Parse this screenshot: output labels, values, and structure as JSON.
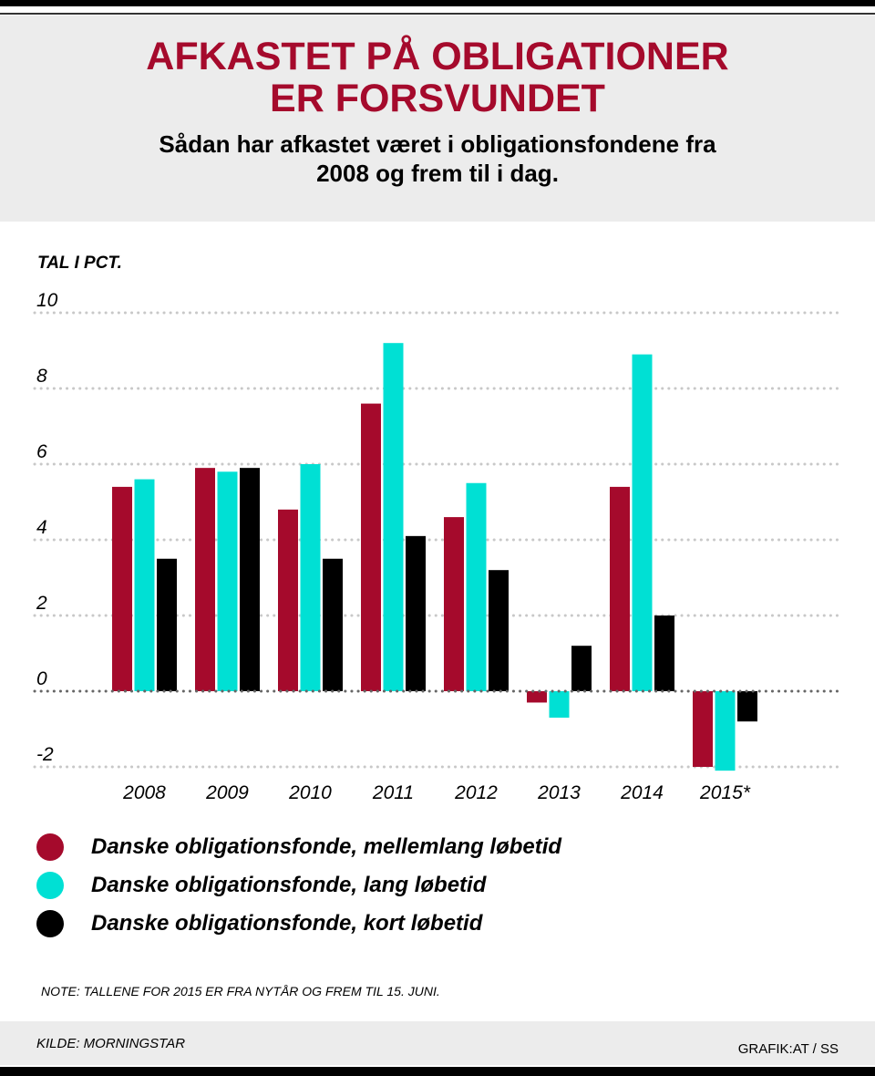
{
  "header": {
    "title_line1": "AFKASTET PÅ OBLIGATIONER",
    "title_line2": "ER FORSVUNDET",
    "subtitle_line1": "Sådan har afkastet været i obligationsfondene fra",
    "subtitle_line2": "2008 og frem til i dag."
  },
  "colors": {
    "mellemlang": "#a50a2c",
    "lang": "#00e0d4",
    "kort": "#000000",
    "title": "#a50a2c",
    "header_bg": "#ececec"
  },
  "chart_data": {
    "type": "bar",
    "title": "AFKASTET PÅ OBLIGATIONER ER FORSVUNDET",
    "subtitle": "Sådan har afkastet været i obligationsfondene fra 2008 og frem til i dag.",
    "ylabel": "TAL I PCT.",
    "xlabel": "",
    "categories": [
      "2008",
      "2009",
      "2010",
      "2011",
      "2012",
      "2013",
      "2014",
      "2015*"
    ],
    "yticks": [
      10,
      8,
      6,
      4,
      2,
      0,
      -2
    ],
    "ylim": [
      -2,
      10
    ],
    "grid": true,
    "legend_position": "bottom",
    "series": [
      {
        "name": "Danske obligationsfonde, mellemlang løbetid",
        "color": "#a50a2c",
        "values": [
          5.4,
          5.9,
          4.8,
          7.6,
          4.6,
          -0.3,
          5.4,
          -2.0
        ]
      },
      {
        "name": "Danske obligationsfonde, lang løbetid",
        "color": "#00e0d4",
        "values": [
          5.6,
          5.8,
          6.0,
          9.2,
          5.5,
          -0.7,
          8.9,
          -2.1
        ]
      },
      {
        "name": "Danske obligationsfonde, kort løbetid",
        "color": "#000000",
        "values": [
          3.5,
          5.9,
          3.5,
          4.1,
          3.2,
          1.2,
          2.0,
          -0.8
        ]
      }
    ]
  },
  "unit_label": "TAL I PCT.",
  "legend": [
    {
      "label": "Danske obligationsfonde, mellemlang løbetid",
      "color": "#a50a2c"
    },
    {
      "label": "Danske obligationsfonde, lang løbetid",
      "color": "#00e0d4"
    },
    {
      "label": "Danske obligationsfonde, kort løbetid",
      "color": "#000000"
    }
  ],
  "note": "NOTE: TALLENE FOR 2015 ER FRA NYTÅR OG FREM TIL 15. JUNI.",
  "footer": {
    "source": "KILDE: MORNINGSTAR",
    "credit": "GRAFIK:AT / SS"
  }
}
